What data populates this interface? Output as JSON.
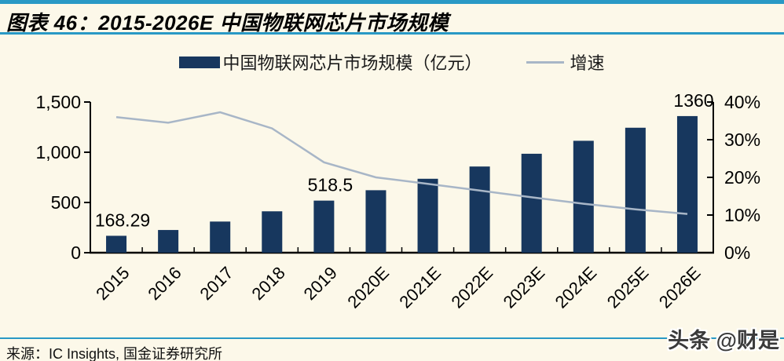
{
  "page": {
    "background": "#FCF8E9",
    "rule_color": "#2999C5"
  },
  "header": {
    "title": "图表 46：2015-2026E 中国物联网芯片市场规模"
  },
  "legend": {
    "items": [
      {
        "label": "中国物联网芯片市场规模（亿元）",
        "swatch": "bar",
        "color": "#17375E"
      },
      {
        "label": "增速",
        "swatch": "line",
        "color": "#A8B6C7"
      }
    ]
  },
  "chart_data": {
    "type": "bar",
    "combo": "bar+line",
    "title": "2015-2026E 中国物联网芯片市场规模",
    "categories": [
      "2015",
      "2016",
      "2017",
      "2018",
      "2019",
      "2020E",
      "2021E",
      "2022E",
      "2023E",
      "2024E",
      "2025E",
      "2026E"
    ],
    "series": [
      {
        "name": "中国物联网芯片市场规模（亿元）",
        "type": "bar",
        "axis": "left",
        "color": "#17375E",
        "values": [
          168.29,
          226,
          310,
          412,
          518.5,
          622,
          736,
          858,
          985,
          1114,
          1244,
          1360
        ]
      },
      {
        "name": "增速",
        "type": "line",
        "axis": "right",
        "color": "#A8B6C7",
        "values": [
          36.0,
          34.5,
          37.3,
          33.0,
          24.0,
          20.0,
          18.3,
          16.5,
          14.7,
          13.0,
          11.5,
          10.3
        ]
      }
    ],
    "left_axis": {
      "min": 0,
      "max": 1500,
      "tick_labels": [
        "0",
        "500",
        "1,000",
        "1,500"
      ]
    },
    "right_axis": {
      "min": 0,
      "max": 40,
      "tick_labels": [
        "0%",
        "10%",
        "20%",
        "30%",
        "40%"
      ],
      "unit": "%"
    },
    "data_labels": [
      {
        "category": "2015",
        "text": "168.29"
      },
      {
        "category": "2019",
        "text": "518.5"
      },
      {
        "category": "2026E",
        "text": "1360"
      }
    ],
    "legend_position": "top",
    "grid": false
  },
  "footer": {
    "source": "来源：IC Insights, 国金证券研究所"
  },
  "watermark": {
    "text": "头条 @财是"
  }
}
